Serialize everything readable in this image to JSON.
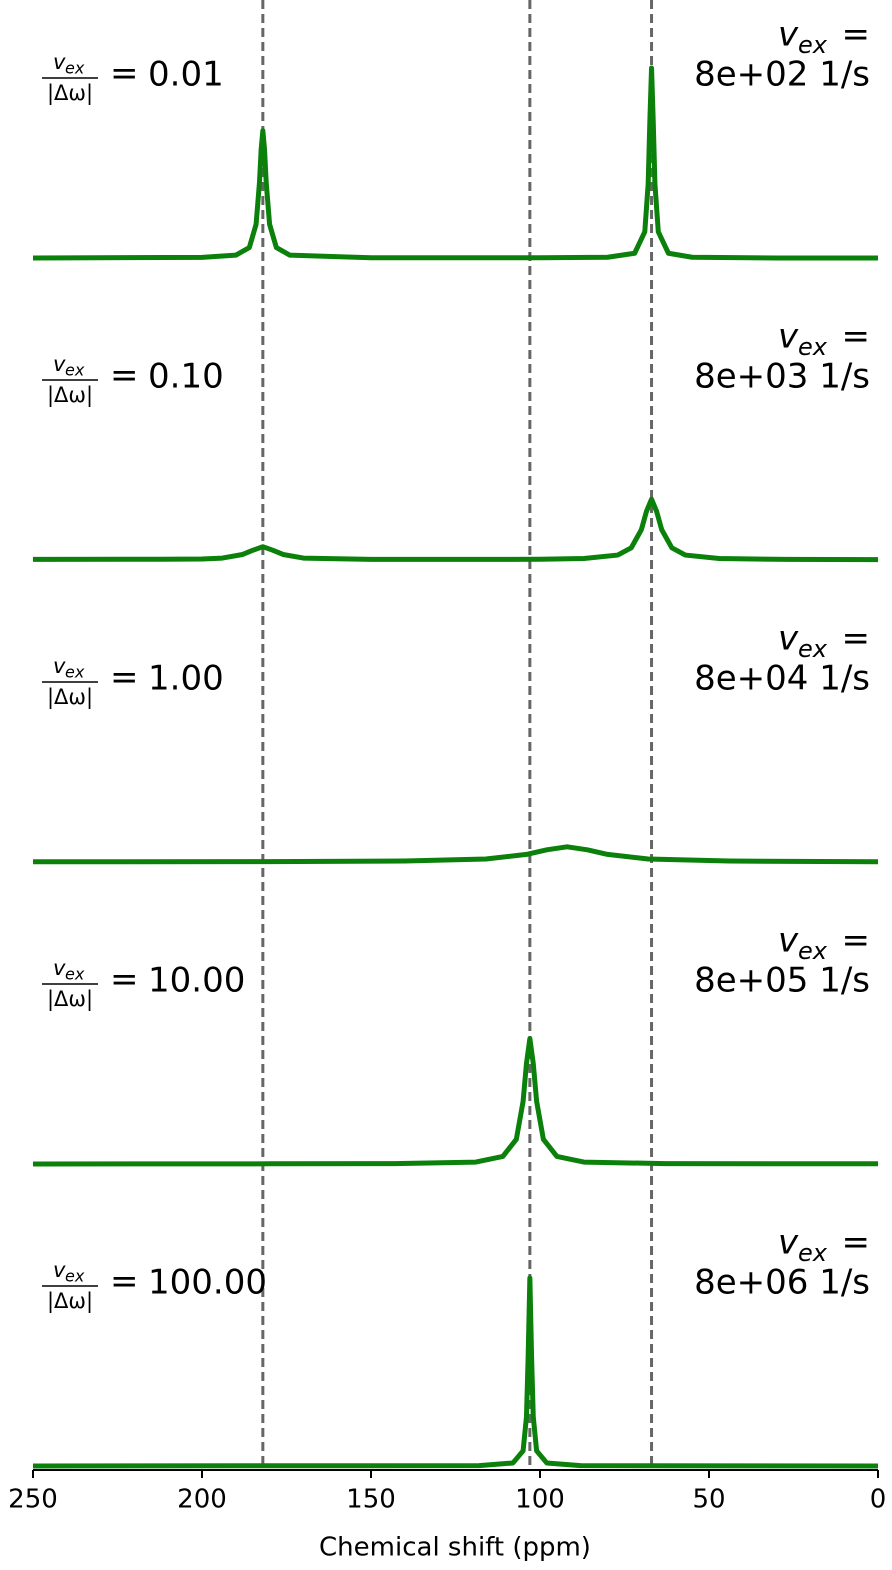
{
  "chart_data": {
    "type": "line",
    "xlabel": "Chemical shift (ppm)",
    "xlim": [
      250,
      0
    ],
    "xticks": [
      250,
      200,
      150,
      100,
      50,
      0
    ],
    "ylim": [
      0,
      1.5
    ],
    "color": "#0b800b",
    "reference_lines": [
      182,
      103,
      67
    ],
    "reference_color": "#666666",
    "ratio_numerator": "v",
    "ratio_numerator_subscript": "ex",
    "ratio_denominator": "|Δω|",
    "equals": "=",
    "rate_symbol": "v",
    "rate_subscript": "ex",
    "panels": [
      {
        "ratio": "0.01",
        "rate": "8e+02 1/s",
        "x": [
          250,
          200,
          190,
          186,
          184,
          183,
          182.5,
          182,
          181.5,
          181,
          180,
          178,
          174,
          150,
          120,
          100,
          80,
          72,
          69,
          68,
          67.5,
          67,
          66.5,
          66,
          65,
          62,
          55,
          30,
          0
        ],
        "values": [
          0.0,
          0.003,
          0.015,
          0.055,
          0.177,
          0.396,
          0.571,
          0.67,
          0.571,
          0.396,
          0.177,
          0.055,
          0.015,
          0.001,
          0.001,
          0.001,
          0.004,
          0.025,
          0.138,
          0.39,
          0.72,
          1.0,
          0.72,
          0.39,
          0.138,
          0.025,
          0.004,
          0.0,
          0.0
        ]
      },
      {
        "ratio": "0.10",
        "rate": "8e+03 1/s",
        "x": [
          250,
          212,
          200,
          194,
          188,
          185,
          182,
          179,
          176,
          170,
          150,
          120,
          100,
          87,
          77,
          73,
          70,
          68.5,
          67,
          65.5,
          64,
          61,
          57,
          47,
          27,
          0
        ],
        "values": [
          0.003,
          0.004,
          0.005,
          0.01,
          0.029,
          0.051,
          0.07,
          0.051,
          0.029,
          0.01,
          0.003,
          0.003,
          0.004,
          0.008,
          0.026,
          0.064,
          0.16,
          0.256,
          0.32,
          0.256,
          0.16,
          0.064,
          0.026,
          0.008,
          0.003,
          0.002
        ]
      },
      {
        "ratio": "1.00",
        "rate": "8e+04 1/s",
        "x": [
          250,
          180,
          140,
          116,
          104,
          98,
          92,
          86,
          80,
          68,
          44,
          0
        ],
        "values": [
          0.001,
          0.002,
          0.005,
          0.016,
          0.04,
          0.064,
          0.08,
          0.064,
          0.04,
          0.016,
          0.005,
          0.001
        ]
      },
      {
        "ratio": "10.00",
        "rate": "8e+05 1/s",
        "x": [
          250,
          180,
          143,
          119,
          111,
          107,
          105,
          104,
          103,
          102,
          101,
          99,
          95,
          87,
          63,
          0
        ],
        "values": [
          0.0,
          0.001,
          0.002,
          0.01,
          0.04,
          0.13,
          0.33,
          0.53,
          0.66,
          0.53,
          0.33,
          0.13,
          0.04,
          0.01,
          0.002,
          0.001
        ]
      },
      {
        "ratio": "100.00",
        "rate": "8e+06 1/s",
        "x": [
          250,
          118,
          108,
          105,
          104,
          103.5,
          103,
          102.5,
          102,
          101,
          98,
          88,
          0
        ],
        "values": [
          0.0,
          0.002,
          0.016,
          0.08,
          0.26,
          0.58,
          0.99,
          0.58,
          0.26,
          0.08,
          0.016,
          0.002,
          0.0
        ]
      }
    ]
  }
}
